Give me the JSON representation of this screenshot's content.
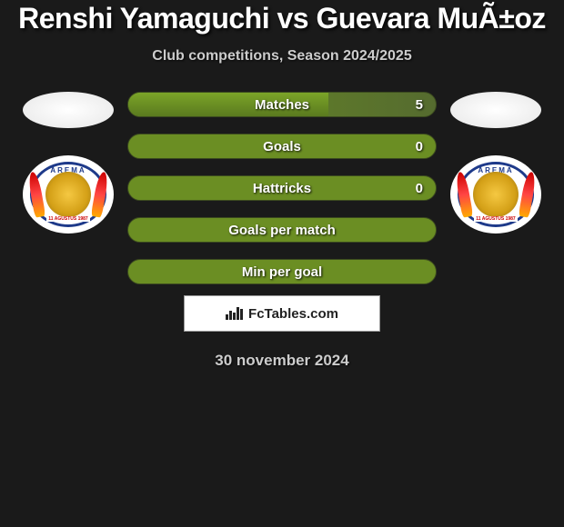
{
  "title": "Renshi Yamaguchi vs Guevara MuÃ±oz",
  "subtitle": "Club competitions, Season 2024/2025",
  "date": "30 november 2024",
  "footer_brand": "FcTables.com",
  "colors": {
    "background": "#1a1a1a",
    "pill_green": "#6b8e23",
    "pill_green_dark": "#556b2f",
    "pill_border": "#3b4a1f",
    "text_white": "#ffffff",
    "text_gray": "#cccccc",
    "badge_blue": "#1e3a8a",
    "badge_red": "#cc0000",
    "badge_gold": "#d4a017"
  },
  "stats": [
    {
      "label": "Matches",
      "value": "5",
      "fill_pct": 65
    },
    {
      "label": "Goals",
      "value": "0",
      "fill_pct": 100
    },
    {
      "label": "Hattricks",
      "value": "0",
      "fill_pct": 100
    },
    {
      "label": "Goals per match",
      "value": "",
      "fill_pct": 100
    },
    {
      "label": "Min per goal",
      "value": "",
      "fill_pct": 100
    }
  ],
  "badge": {
    "text_top": "AREMA",
    "text_bottom": "11 AGUSTUS 1987"
  }
}
